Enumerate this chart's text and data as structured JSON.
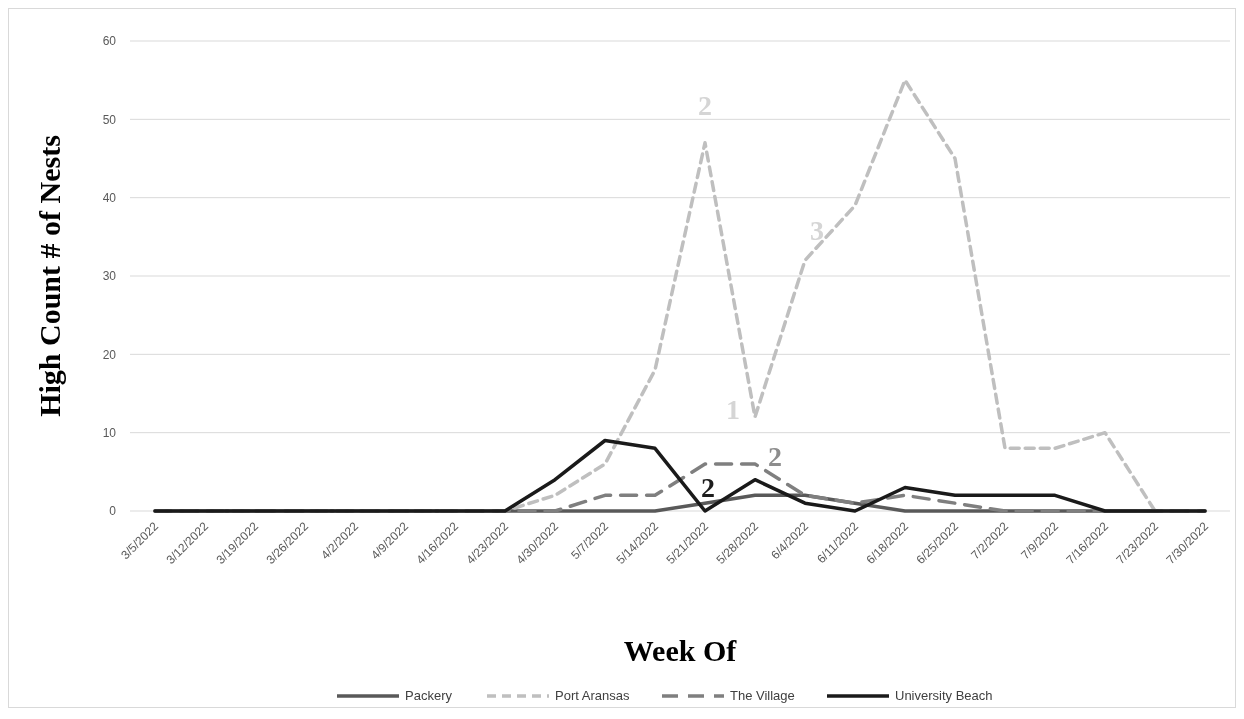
{
  "chart_data": {
    "type": "line",
    "xlabel": "Week Of",
    "ylabel": "High Count # of Nests",
    "categories": [
      "3/5/2022",
      "3/12/2022",
      "3/19/2022",
      "3/26/2022",
      "4/2/2022",
      "4/9/2022",
      "4/16/2022",
      "4/23/2022",
      "4/30/2022",
      "5/7/2022",
      "5/14/2022",
      "5/21/2022",
      "5/28/2022",
      "6/4/2022",
      "6/11/2022",
      "6/18/2022",
      "6/25/2022",
      "7/2/2022",
      "7/9/2022",
      "7/16/2022",
      "7/23/2022",
      "7/30/2022"
    ],
    "series": [
      {
        "name": "Packery",
        "color": "#595959",
        "line_style": "solid",
        "values": [
          0,
          0,
          0,
          0,
          0,
          0,
          0,
          0,
          0,
          0,
          0,
          1,
          2,
          2,
          1,
          0,
          0,
          0,
          0,
          0,
          0,
          0
        ]
      },
      {
        "name": "Port Aransas",
        "color": "#bfbfbf",
        "line_style": "dashed",
        "values": [
          0,
          0,
          0,
          0,
          0,
          0,
          0,
          0,
          2,
          6,
          18,
          47,
          12,
          32,
          39,
          55,
          45,
          8,
          8,
          10,
          0,
          0
        ]
      },
      {
        "name": "The Village",
        "color": "#7f7f7f",
        "line_style": "dashed",
        "values": [
          0,
          0,
          0,
          0,
          0,
          0,
          0,
          0,
          0,
          2,
          2,
          6,
          6,
          2,
          1,
          2,
          1,
          0,
          0,
          0,
          0,
          0
        ]
      },
      {
        "name": "University Beach",
        "color": "#1a1a1a",
        "line_style": "solid",
        "values": [
          0,
          0,
          0,
          0,
          0,
          0,
          0,
          0,
          4,
          9,
          8,
          0,
          4,
          1,
          0,
          3,
          2,
          2,
          2,
          0,
          0,
          0
        ]
      }
    ],
    "ylim": [
      0,
      60
    ],
    "yticks": [
      0,
      10,
      20,
      30,
      40,
      50,
      60
    ],
    "grid": "y",
    "legend": "bottom",
    "annotations": [
      {
        "text": "2",
        "x": "5/21/2022",
        "y": 47
      },
      {
        "text": "3",
        "x": "6/4/2022",
        "y": 32
      },
      {
        "text": "1",
        "x": "5/28/2022",
        "y": 12
      },
      {
        "text": "2",
        "x": "5/28/2022",
        "y": 6
      },
      {
        "text": "2",
        "x": "5/21/2022",
        "y": 0
      }
    ]
  }
}
